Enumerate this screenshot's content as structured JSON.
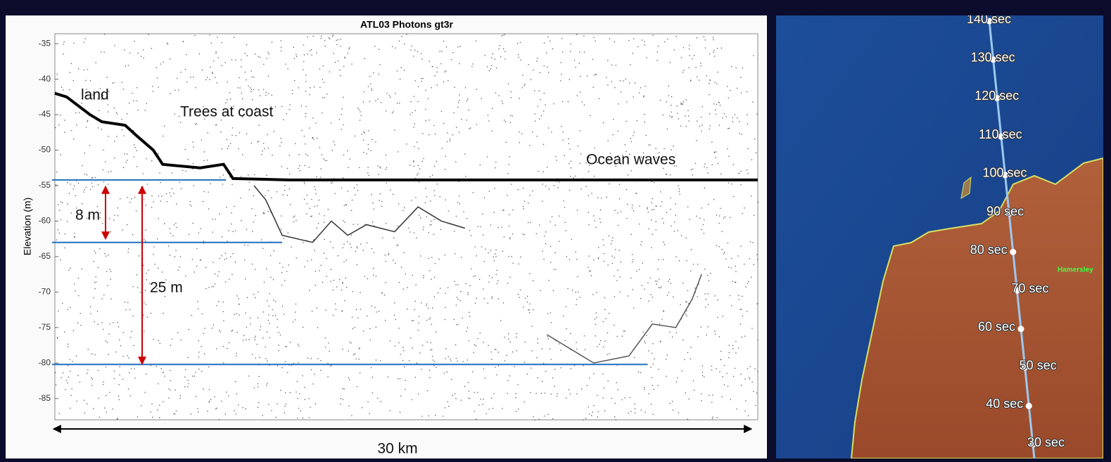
{
  "chart_data": {
    "type": "scatter",
    "title": "ATL03 Photons gt3r",
    "ylabel": "Elevation (m)",
    "ylim": [
      -88,
      -33.6
    ],
    "yticks": [
      -35,
      -40,
      -45,
      -50,
      -55,
      -60,
      -65,
      -70,
      -75,
      -80,
      -85
    ],
    "xlim": [
      0,
      30
    ],
    "surface": {
      "x": [
        0,
        0.5,
        1.5,
        2,
        3,
        3.5,
        4.2,
        4.6,
        6.2,
        7.2,
        7.6,
        10,
        15,
        20,
        25,
        30
      ],
      "values": [
        -42,
        -42.5,
        -45,
        -46,
        -46.5,
        -48,
        -50,
        -52,
        -52.5,
        -52,
        -54,
        -54.2,
        -54.2,
        -54.2,
        -54.2,
        -54.2
      ]
    },
    "seabed": {
      "x": [
        8.5,
        9,
        9.7,
        11,
        11.8,
        12.5,
        13.3,
        14.5,
        15.5,
        16.5,
        17.5
      ],
      "values": [
        -55,
        -57,
        -62,
        -63,
        -60,
        -62,
        -60.5,
        -61.5,
        -58,
        -60,
        -61
      ]
    },
    "deep": {
      "x": [
        21,
        23,
        24.5,
        25.5,
        26.5,
        27.2,
        27.6
      ],
      "values": [
        -76,
        -80,
        -79,
        -74.5,
        -75,
        -71,
        -67.5
      ]
    },
    "reference_lines": [
      {
        "value": -54.2,
        "x_end": 7.3
      },
      {
        "value": -63,
        "x_end": 9.7
      },
      {
        "value": -80.2,
        "x_end": 25.3
      }
    ],
    "annotations": [
      "land",
      "Trees at coast",
      "Ocean waves",
      "8 m",
      "25 m",
      "30 km"
    ],
    "map": {
      "track_labels": [
        "140 sec",
        "130 sec",
        "120 sec",
        "110 sec",
        "100 sec",
        "90 sec",
        "80 sec",
        "70 sec",
        "60 sec",
        "50 sec",
        "40 sec",
        "30 sec"
      ],
      "place": "Hamersley"
    }
  }
}
